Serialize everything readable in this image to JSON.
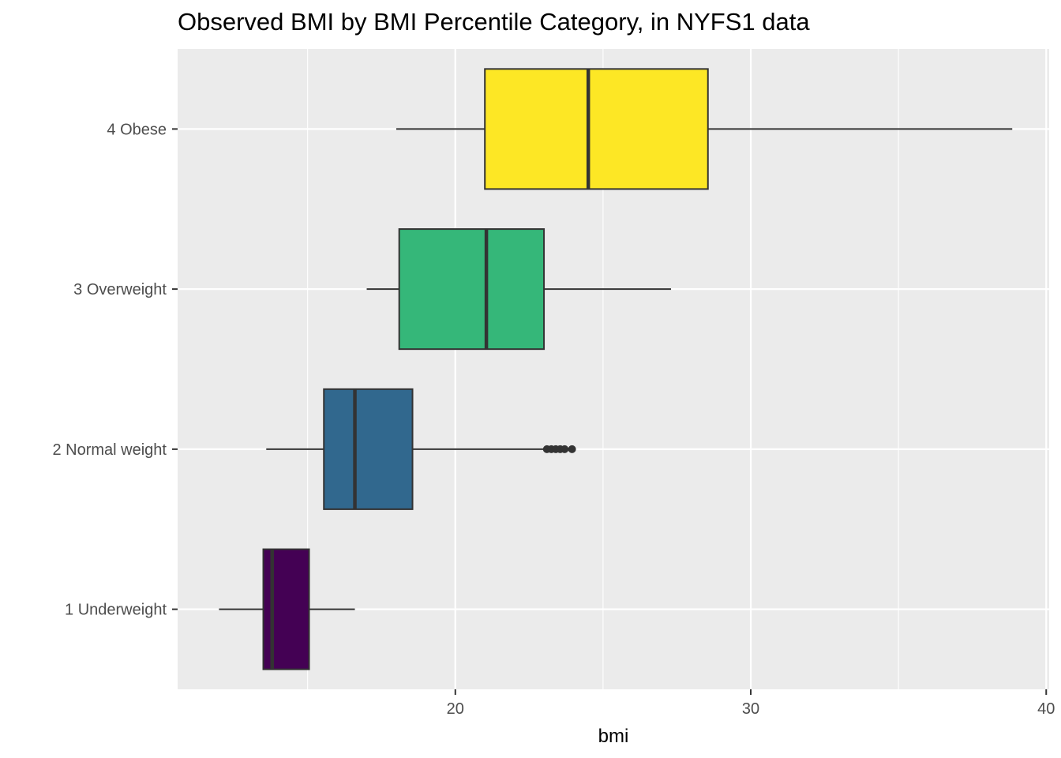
{
  "chart_data": {
    "type": "boxplot",
    "orientation": "horizontal",
    "title": "Observed BMI by BMI Percentile Category, in NYFS1 data",
    "xlabel": "bmi",
    "ylabel": "",
    "xlim": [
      10.6,
      40.1
    ],
    "x_ticks": [
      20,
      30,
      40
    ],
    "x_minor_ticks": [
      15,
      25,
      35
    ],
    "grid": true,
    "legend": "none",
    "panel_color": "#ebebeb",
    "categories": [
      "1 Underweight",
      "2 Normal weight",
      "3 Overweight",
      "4 Obese"
    ],
    "boxes": [
      {
        "category": "1 Underweight",
        "whisker_low": 12.0,
        "q1": 13.5,
        "median": 13.8,
        "q3": 15.05,
        "whisker_high": 16.6,
        "outliers": [],
        "color": "#440154"
      },
      {
        "category": "2 Normal weight",
        "whisker_low": 13.6,
        "q1": 15.55,
        "median": 16.6,
        "q3": 18.55,
        "whisker_high": 23.1,
        "outliers": [
          23.1,
          23.25,
          23.4,
          23.55,
          23.7,
          23.95
        ],
        "color": "#31688e"
      },
      {
        "category": "3 Overweight",
        "whisker_low": 17.0,
        "q1": 18.1,
        "median": 21.05,
        "q3": 23.0,
        "whisker_high": 27.3,
        "outliers": [],
        "color": "#35b779"
      },
      {
        "category": "4 Obese",
        "whisker_low": 18.0,
        "q1": 21.0,
        "median": 24.5,
        "q3": 28.55,
        "whisker_high": 38.85,
        "outliers": [],
        "color": "#fde725"
      }
    ]
  }
}
